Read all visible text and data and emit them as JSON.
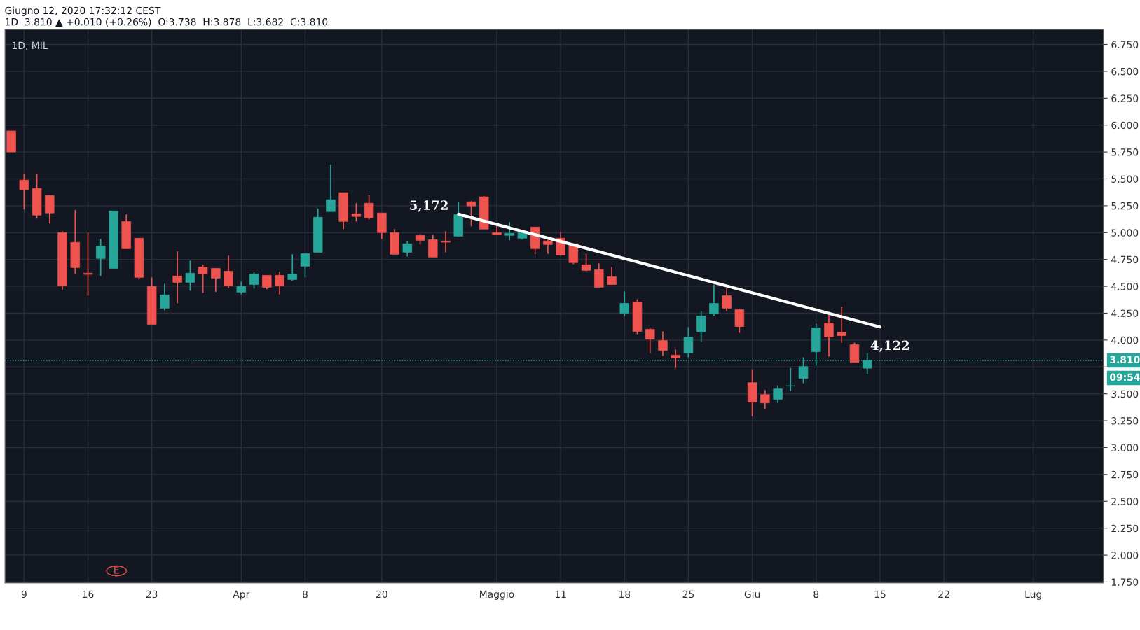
{
  "chart_data": {
    "type": "candlestick",
    "title": "Giugno 12, 2020 17:32:12 CEST",
    "subtitle": "1D  3.810 ▲ +0.010 (+0.26%)  O:3.738  H:3.878  L:3.682  C:3.810",
    "categories": [
      null,
      "9",
      null,
      null,
      null,
      null,
      "16",
      null,
      null,
      null,
      null,
      "23",
      null,
      null,
      null,
      null,
      null,
      null,
      "Apr",
      null,
      null,
      null,
      null,
      "8",
      null,
      null,
      null,
      null,
      null,
      "20",
      null,
      null,
      null,
      null,
      null,
      null,
      null,
      null,
      "Maggio",
      null,
      null,
      null,
      null,
      "11",
      null,
      null,
      null,
      null,
      "18",
      null,
      null,
      null,
      null,
      "25",
      null,
      null,
      null,
      null,
      "Giu",
      null,
      null,
      null,
      null,
      "8",
      null,
      null,
      null,
      null,
      "15",
      null,
      null,
      null,
      null,
      "22",
      null,
      null,
      null,
      null,
      null,
      null,
      "Lug",
      null,
      null,
      null,
      null,
      null
    ],
    "ohlc": [
      [
        5.946,
        5.946,
        5.75,
        5.75
      ],
      [
        5.489,
        5.548,
        5.215,
        5.398
      ],
      [
        5.411,
        5.548,
        5.13,
        5.163
      ],
      [
        5.346,
        5.346,
        5.085,
        5.183
      ],
      [
        5.0,
        5.013,
        4.472,
        4.504
      ],
      [
        4.909,
        5.209,
        4.615,
        4.674
      ],
      [
        4.622,
        5.0,
        4.413,
        4.611
      ],
      [
        4.759,
        4.941,
        4.596,
        4.876
      ],
      [
        4.667,
        5.202,
        4.667,
        5.202
      ],
      [
        5.104,
        5.17,
        4.85,
        4.85
      ],
      [
        4.948,
        4.948,
        4.563,
        4.583
      ],
      [
        4.498,
        4.583,
        4.146,
        4.146
      ],
      [
        4.296,
        4.524,
        4.276,
        4.42
      ],
      [
        4.596,
        4.824,
        4.341,
        4.537
      ],
      [
        4.537,
        4.739,
        4.459,
        4.622
      ],
      [
        4.68,
        4.7,
        4.439,
        4.615
      ],
      [
        4.667,
        4.667,
        4.448,
        4.576
      ],
      [
        4.641,
        4.785,
        4.485,
        4.504
      ],
      [
        4.446,
        4.543,
        4.426,
        4.498
      ],
      [
        4.517,
        4.628,
        4.478,
        4.615
      ],
      [
        4.602,
        4.602,
        4.472,
        4.491
      ],
      [
        4.602,
        4.635,
        4.426,
        4.504
      ],
      [
        4.563,
        4.798,
        4.55,
        4.615
      ],
      [
        4.687,
        4.804,
        4.583,
        4.804
      ],
      [
        4.817,
        5.222,
        4.817,
        5.143
      ],
      [
        5.196,
        5.633,
        5.196,
        5.307
      ],
      [
        5.372,
        5.372,
        5.033,
        5.104
      ],
      [
        5.176,
        5.274,
        5.104,
        5.15
      ],
      [
        5.274,
        5.346,
        5.124,
        5.137
      ],
      [
        5.183,
        5.183,
        4.941,
        5.0
      ],
      [
        5.0,
        5.033,
        4.798,
        4.798
      ],
      [
        4.817,
        4.922,
        4.778,
        4.896
      ],
      [
        4.974,
        4.987,
        4.889,
        4.928
      ],
      [
        4.935,
        4.98,
        4.772,
        4.772
      ],
      [
        4.922,
        5.013,
        4.817,
        4.911
      ],
      [
        4.967,
        5.287,
        4.961,
        5.17
      ],
      [
        5.287,
        5.293,
        5.059,
        5.248
      ],
      [
        5.333,
        5.339,
        5.033,
        5.033
      ],
      [
        5.0,
        5.078,
        4.98,
        4.98
      ],
      [
        4.974,
        5.098,
        4.928,
        4.993
      ],
      [
        4.948,
        5.02,
        4.935,
        5.0
      ],
      [
        5.052,
        5.052,
        4.798,
        4.85
      ],
      [
        4.922,
        4.948,
        4.804,
        4.889
      ],
      [
        4.948,
        5.007,
        4.785,
        4.791
      ],
      [
        4.896,
        4.896,
        4.707,
        4.72
      ],
      [
        4.7,
        4.804,
        4.641,
        4.648
      ],
      [
        4.654,
        4.713,
        4.491,
        4.491
      ],
      [
        4.589,
        4.68,
        4.517,
        4.517
      ],
      [
        4.25,
        4.452,
        4.224,
        4.341
      ],
      [
        4.354,
        4.38,
        4.054,
        4.08
      ],
      [
        4.1,
        4.113,
        3.878,
        4.009
      ],
      [
        3.996,
        4.08,
        3.852,
        3.904
      ],
      [
        3.859,
        3.911,
        3.741,
        3.833
      ],
      [
        3.878,
        4.12,
        3.839,
        4.028
      ],
      [
        4.074,
        4.27,
        3.983,
        4.224
      ],
      [
        4.243,
        4.517,
        4.224,
        4.341
      ],
      [
        4.413,
        4.485,
        4.27,
        4.296
      ],
      [
        4.283,
        4.289,
        4.067,
        4.126
      ],
      [
        3.604,
        3.728,
        3.291,
        3.422
      ],
      [
        3.493,
        3.533,
        3.363,
        3.415
      ],
      [
        3.448,
        3.578,
        3.415,
        3.546
      ],
      [
        3.572,
        3.741,
        3.526,
        3.576
      ],
      [
        3.643,
        3.839,
        3.598,
        3.754
      ],
      [
        3.891,
        4.152,
        3.761,
        4.113
      ],
      [
        4.159,
        4.237,
        3.846,
        4.028
      ],
      [
        4.074,
        4.309,
        3.976,
        4.041
      ],
      [
        3.957,
        3.976,
        3.793,
        3.793
      ],
      [
        3.738,
        3.878,
        3.682,
        3.81
      ],
      null,
      null,
      null,
      null,
      null,
      null,
      null,
      null,
      null,
      null,
      null,
      null,
      null,
      null,
      null,
      null,
      null,
      null
    ],
    "colors": [
      "#ef5350",
      "#ef5350",
      "#ef5350",
      "#ef5350",
      "#ef5350",
      "#ef5350",
      "#ef5350",
      "#26a69a",
      "#26a69a",
      "#ef5350",
      "#ef5350",
      "#ef5350",
      "#26a69a",
      "#ef5350",
      "#26a69a",
      "#ef5350",
      "#ef5350",
      "#ef5350",
      "#26a69a",
      "#26a69a",
      "#ef5350",
      "#ef5350",
      "#26a69a",
      "#26a69a",
      "#26a69a",
      "#26a69a",
      "#ef5350",
      "#ef5350",
      "#ef5350",
      "#ef5350",
      "#ef5350",
      "#26a69a",
      "#ef5350",
      "#ef5350",
      "#ef5350",
      "#26a69a",
      "#ef5350",
      "#ef5350",
      "#ef5350",
      "#26a69a",
      "#26a69a",
      "#ef5350",
      "#ef5350",
      "#ef5350",
      "#ef5350",
      "#ef5350",
      "#ef5350",
      "#ef5350",
      "#26a69a",
      "#ef5350",
      "#ef5350",
      "#ef5350",
      "#ef5350",
      "#26a69a",
      "#26a69a",
      "#26a69a",
      "#ef5350",
      "#ef5350",
      "#ef5350",
      "#ef5350",
      "#26a69a",
      "#26a69a",
      "#26a69a",
      "#26a69a",
      "#ef5350",
      "#ef5350",
      "#ef5350",
      "#26a69a",
      null,
      null,
      null,
      null,
      null,
      null,
      null,
      null,
      null,
      null,
      null,
      null,
      null,
      null,
      null,
      null,
      null,
      null
    ],
    "series": [
      {
        "type": "line",
        "color": "#ffffff",
        "values": [
          null,
          null,
          null,
          null,
          null,
          null,
          null,
          null,
          null,
          null,
          null,
          null,
          null,
          null,
          null,
          null,
          null,
          null,
          null,
          null,
          null,
          null,
          null,
          null,
          null,
          null,
          null,
          null,
          null,
          null,
          null,
          null,
          null,
          null,
          null,
          5.172,
          null,
          null,
          null,
          null,
          null,
          null,
          null,
          null,
          null,
          null,
          null,
          null,
          null,
          null,
          null,
          null,
          null,
          null,
          null,
          null,
          null,
          null,
          null,
          null,
          null,
          null,
          null,
          null,
          null,
          null,
          null,
          null,
          4.122,
          null,
          null,
          null,
          null,
          null,
          null,
          null,
          null,
          null,
          null,
          null,
          null,
          null,
          null,
          null,
          null,
          null
        ]
      }
    ],
    "ref_lines": [
      {
        "axis": "y",
        "value": 3.81,
        "label": "3.810",
        "color": "#26a69a",
        "line_style": "dotted"
      }
    ],
    "annotations": [
      "1D, MIL",
      "5,172",
      "4,122",
      "09:54",
      "E"
    ],
    "ylim": [
      1.74,
      6.89
    ],
    "yticks": [
      {
        "value": 1.75,
        "label": "1.750"
      },
      {
        "value": 2.0,
        "label": "2.000"
      },
      {
        "value": 2.25,
        "label": "2.250"
      },
      {
        "value": 2.5,
        "label": "2.500"
      },
      {
        "value": 2.75,
        "label": "2.750"
      },
      {
        "value": 3.0,
        "label": "3.000"
      },
      {
        "value": 3.25,
        "label": "3.250"
      },
      {
        "value": 3.5,
        "label": "3.500"
      },
      {
        "value": 3.75,
        "label": null
      },
      {
        "value": 4.0,
        "label": "4.000"
      },
      {
        "value": 4.25,
        "label": "4.250"
      },
      {
        "value": 4.5,
        "label": "4.500"
      },
      {
        "value": 4.75,
        "label": "4.750"
      },
      {
        "value": 5.0,
        "label": "5.000"
      },
      {
        "value": 5.25,
        "label": "5.250"
      },
      {
        "value": 5.5,
        "label": "5.500"
      },
      {
        "value": 5.75,
        "label": "5.750"
      },
      {
        "value": 6.0,
        "label": "6.000"
      },
      {
        "value": 6.25,
        "label": "6.250"
      },
      {
        "value": 6.5,
        "label": "6.500"
      },
      {
        "value": 6.75,
        "label": "6.750"
      }
    ],
    "grid": true,
    "legend": false
  }
}
